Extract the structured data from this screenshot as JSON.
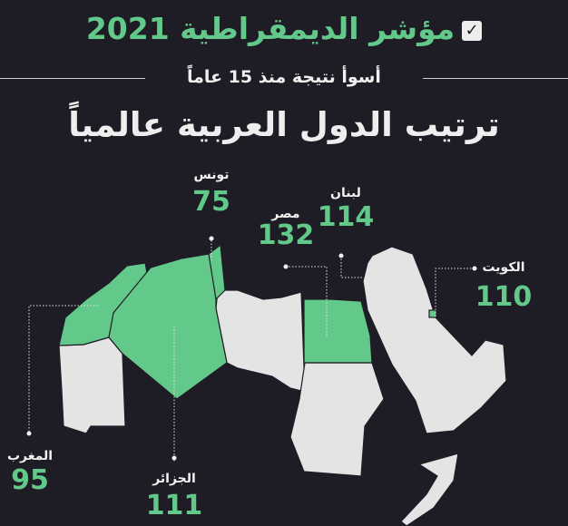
{
  "header": {
    "title": "مؤشر الديمقراطية 2021",
    "title_icon": "checkbox-check-icon",
    "subtitle": "أسوأ نتيجة منذ 15 عاماً",
    "heading": "ترتيب الدول العربية عالمياً"
  },
  "colors": {
    "background": "#1e1c24",
    "highlight": "#62c98a",
    "land": "#e4e4e4"
  },
  "countries": [
    {
      "name": "تونس",
      "rank": "75"
    },
    {
      "name": "مصر",
      "rank": "132"
    },
    {
      "name": "لبنان",
      "rank": "114"
    },
    {
      "name": "الكويت",
      "rank": "110"
    },
    {
      "name": "الجزائر",
      "rank": "111"
    },
    {
      "name": "المغرب",
      "rank": "95"
    }
  ]
}
